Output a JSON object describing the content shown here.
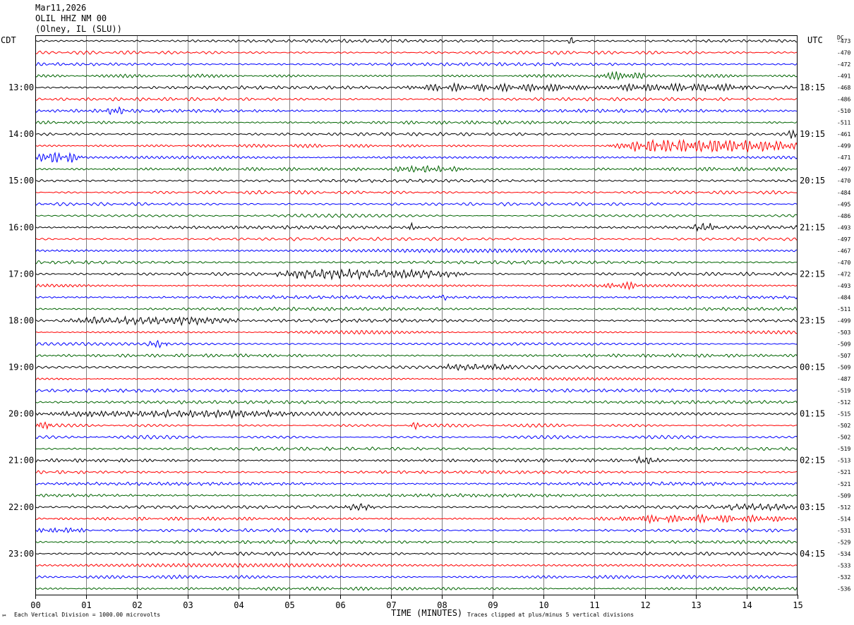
{
  "header": {
    "date": "Mar11,2026",
    "station": "OLIL HHZ NM 00",
    "location": "(Olney, IL (SLU))"
  },
  "axes": {
    "left_timezone": "CDT",
    "right_timezone": "UTC",
    "dc_label": "DC",
    "xlabel": "TIME (MINUTES)"
  },
  "footer": {
    "scale_note": "Each Vertical Division = 1000.00 microvolts",
    "clip_note": "Traces clipped at plus/minus 5 vertical divisions",
    "corner_mark": "℠"
  },
  "chart_data": {
    "type": "line",
    "title": "",
    "xlabel": "TIME (MINUTES)",
    "ylabel": "",
    "xlim": [
      0,
      15
    ],
    "x_ticks": [
      "00",
      "01",
      "02",
      "03",
      "04",
      "05",
      "06",
      "07",
      "08",
      "09",
      "10",
      "11",
      "12",
      "13",
      "14",
      "15"
    ],
    "minutes_per_trace": 15,
    "trace_colors": [
      "#000000",
      "#ff0000",
      "#0000ff",
      "#006400"
    ],
    "left_hour_labels": [
      "13:00",
      "14:00",
      "15:00",
      "16:00",
      "17:00",
      "18:00",
      "19:00",
      "20:00",
      "21:00",
      "22:00",
      "23:00"
    ],
    "right_hour_labels": [
      "18:15",
      "19:15",
      "20:15",
      "21:15",
      "22:15",
      "23:15",
      "00:15",
      "01:15",
      "02:15",
      "03:15",
      "04:15"
    ],
    "dc_offsets": [
      -473,
      -470,
      -472,
      -491,
      -468,
      -486,
      -510,
      -511,
      -461,
      -499,
      -471,
      -497,
      -470,
      -484,
      -495,
      -486,
      -493,
      -497,
      -467,
      -470,
      -472,
      -493,
      -484,
      -511,
      -499,
      -503,
      -509,
      -507,
      -509,
      -487,
      -519,
      -512,
      -515,
      -502,
      -502,
      -519,
      -513,
      -521,
      -521,
      -509,
      -512,
      -514,
      -531,
      -529,
      -534,
      -533,
      -532,
      -536
    ],
    "events": [
      {
        "trace": 0,
        "start": 10.45,
        "end": 10.65,
        "amp": 2.4
      },
      {
        "trace": 3,
        "start": 11.0,
        "end": 12.0,
        "amp": 1.8
      },
      {
        "trace": 4,
        "start": 7.3,
        "end": 11.1,
        "amp": 2.2
      },
      {
        "trace": 4,
        "start": 11.1,
        "end": 14.0,
        "amp": 1.8
      },
      {
        "trace": 6,
        "start": 1.4,
        "end": 1.8,
        "amp": 1.6
      },
      {
        "trace": 8,
        "start": 14.8,
        "end": 15.0,
        "amp": 2.0
      },
      {
        "trace": 9,
        "start": 11.3,
        "end": 15.0,
        "amp": 4.2
      },
      {
        "trace": 10,
        "start": 0.0,
        "end": 0.95,
        "amp": 3.5
      },
      {
        "trace": 11,
        "start": 7.0,
        "end": 8.5,
        "amp": 1.8
      },
      {
        "trace": 16,
        "start": 7.35,
        "end": 7.55,
        "amp": 2.2
      },
      {
        "trace": 16,
        "start": 12.9,
        "end": 13.4,
        "amp": 2.2
      },
      {
        "trace": 20,
        "start": 4.7,
        "end": 8.5,
        "amp": 2.6
      },
      {
        "trace": 21,
        "start": 11.2,
        "end": 11.9,
        "amp": 1.4
      },
      {
        "trace": 22,
        "start": 7.95,
        "end": 8.1,
        "amp": 2.2
      },
      {
        "trace": 24,
        "start": 0.5,
        "end": 4.0,
        "amp": 2.4
      },
      {
        "trace": 26,
        "start": 2.2,
        "end": 2.6,
        "amp": 2.0
      },
      {
        "trace": 28,
        "start": 8.0,
        "end": 9.4,
        "amp": 1.4
      },
      {
        "trace": 32,
        "start": 0.0,
        "end": 5.1,
        "amp": 1.8
      },
      {
        "trace": 33,
        "start": 0.0,
        "end": 0.3,
        "amp": 2.0
      },
      {
        "trace": 33,
        "start": 7.4,
        "end": 7.6,
        "amp": 2.2
      },
      {
        "trace": 36,
        "start": 11.8,
        "end": 12.3,
        "amp": 1.8
      },
      {
        "trace": 40,
        "start": 6.1,
        "end": 6.7,
        "amp": 1.8
      },
      {
        "trace": 40,
        "start": 13.5,
        "end": 15.0,
        "amp": 1.3
      },
      {
        "trace": 41,
        "start": 11.5,
        "end": 15.0,
        "amp": 1.6
      },
      {
        "trace": 42,
        "start": 0.0,
        "end": 1.0,
        "amp": 1.5
      }
    ]
  }
}
